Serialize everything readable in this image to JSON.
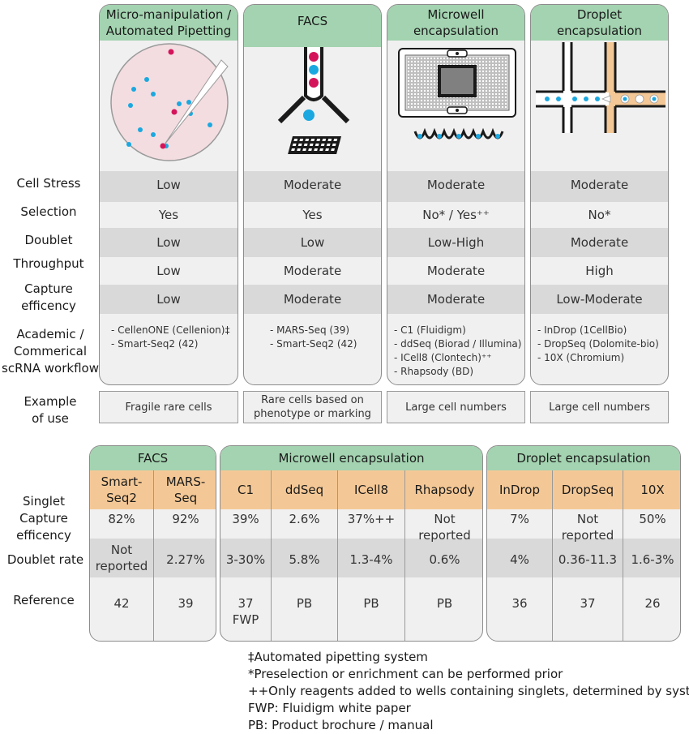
{
  "methods": [
    {
      "title_l1": "Micro-manipulation /",
      "title_l2": "Automated Pipetting",
      "stress": "Low",
      "selection": "Yes",
      "doublet": "Low",
      "throughput": "Low",
      "capture": "Low",
      "workflows": [
        "- CellenONE (Cellenion)‡",
        "- Smart-Seq2 (42)"
      ],
      "example": "Fragile rare cells",
      "example_l2": ""
    },
    {
      "title_l1": "FACS",
      "title_l2": "",
      "stress": "Moderate",
      "selection": "Yes",
      "doublet": "Low",
      "throughput": "Moderate",
      "capture": "Moderate",
      "workflows": [
        "- MARS-Seq (39)",
        "- Smart-Seq2 (42)"
      ],
      "example": "Rare cells based on",
      "example_l2": "phenotype or marking"
    },
    {
      "title_l1": "Microwell",
      "title_l2": "encapsulation",
      "stress": "Moderate",
      "selection": "No* / Yes⁺⁺",
      "doublet": "Low-High",
      "throughput": "Moderate",
      "capture": "Moderate",
      "workflows": [
        "- C1 (Fluidigm)",
        "- ddSeq (Biorad / Illumina)",
        "- ICell8 (Clontech)⁺⁺",
        "- Rhapsody (BD)"
      ],
      "example": "Large cell numbers",
      "example_l2": ""
    },
    {
      "title_l1": "Droplet",
      "title_l2": "encapsulation",
      "stress": "Moderate",
      "selection": "No*",
      "doublet": "Moderate",
      "throughput": "High",
      "capture": "Low-Moderate",
      "workflows": [
        "- InDrop (1CellBio)",
        "- DropSeq (Dolomite-bio)",
        "- 10X (Chromium)"
      ],
      "example": "Large cell numbers",
      "example_l2": ""
    }
  ],
  "row_labels": {
    "stress": "Cell Stress",
    "selection": "Selection",
    "doublet": "Doublet",
    "throughput": "Throughput",
    "capture_l1": "Capture",
    "capture_l2": "efficency",
    "workflow_l1": "Academic /",
    "workflow_l2": "Commerical",
    "workflow_l3": "scRNA workflow",
    "example_l1": "Example",
    "example_l2": "of use"
  },
  "table": {
    "row_labels": {
      "capture_l1": "Singlet",
      "capture_l2": "Capture",
      "capture_l3": "efficency",
      "doublet": "Doublet rate",
      "reference": "Reference"
    },
    "groups": [
      {
        "title": "FACS",
        "columns": [
          {
            "name_l1": "Smart-",
            "name_l2": "Seq2",
            "capture_l1": "82%",
            "capture_l2": "",
            "doublet_l1": "Not",
            "doublet_l2": "reported",
            "ref_l1": "42",
            "ref_l2": ""
          },
          {
            "name_l1": "MARS-",
            "name_l2": "Seq",
            "capture_l1": "92%",
            "capture_l2": "",
            "doublet_l1": "2.27%",
            "doublet_l2": "",
            "ref_l1": "39",
            "ref_l2": ""
          }
        ]
      },
      {
        "title": "Microwell encapsulation",
        "columns": [
          {
            "name_l1": "C1",
            "name_l2": "",
            "capture_l1": "39%",
            "capture_l2": "",
            "doublet_l1": "3-30%",
            "doublet_l2": "",
            "ref_l1": "37",
            "ref_l2": "FWP"
          },
          {
            "name_l1": "ddSeq",
            "name_l2": "",
            "capture_l1": "2.6%",
            "capture_l2": "",
            "doublet_l1": "5.8%",
            "doublet_l2": "",
            "ref_l1": "PB",
            "ref_l2": ""
          },
          {
            "name_l1": "ICell8",
            "name_l2": "",
            "capture_l1": "37%++",
            "capture_l2": "",
            "doublet_l1": "1.3-4%",
            "doublet_l2": "",
            "ref_l1": "PB",
            "ref_l2": ""
          },
          {
            "name_l1": "Rhapsody",
            "name_l2": "",
            "capture_l1": "Not",
            "capture_l2": "reported",
            "doublet_l1": "0.6%",
            "doublet_l2": "",
            "ref_l1": "PB",
            "ref_l2": ""
          }
        ]
      },
      {
        "title": "Droplet encapsulation",
        "columns": [
          {
            "name_l1": "InDrop",
            "name_l2": "",
            "capture_l1": "7%",
            "capture_l2": "",
            "doublet_l1": "4%",
            "doublet_l2": "",
            "ref_l1": "36",
            "ref_l2": ""
          },
          {
            "name_l1": "DropSeq",
            "name_l2": "",
            "capture_l1": "Not",
            "capture_l2": "reported",
            "doublet_l1": "0.36-11.3",
            "doublet_l2": "",
            "ref_l1": "37",
            "ref_l2": ""
          },
          {
            "name_l1": "10X",
            "name_l2": "",
            "capture_l1": "50%",
            "capture_l2": "",
            "doublet_l1": "1.6-3%",
            "doublet_l2": "",
            "ref_l1": "26",
            "ref_l2": ""
          }
        ]
      }
    ]
  },
  "notes": [
    "‡Automated pipetting system",
    "*Preselection or enrichment can be performed prior",
    "++Only reagents added to wells containing singlets, determined by system",
    "FWP: Fluidigm white paper",
    "PB: Product brochure / manual"
  ],
  "colors": {
    "header_green": "#a3d3b0",
    "header_orange": "#f4c896",
    "band_gray": "#d9d9d9",
    "cell_blue": "#1ba8e0",
    "cell_magenta": "#d4145a",
    "dish_pink": "#f3dde1",
    "droplet_orange": "#f4c896"
  },
  "icons": [
    "petri-dish-pipette-icon",
    "facs-sorter-icon",
    "microwell-chip-icon",
    "droplet-microfluidic-icon"
  ]
}
